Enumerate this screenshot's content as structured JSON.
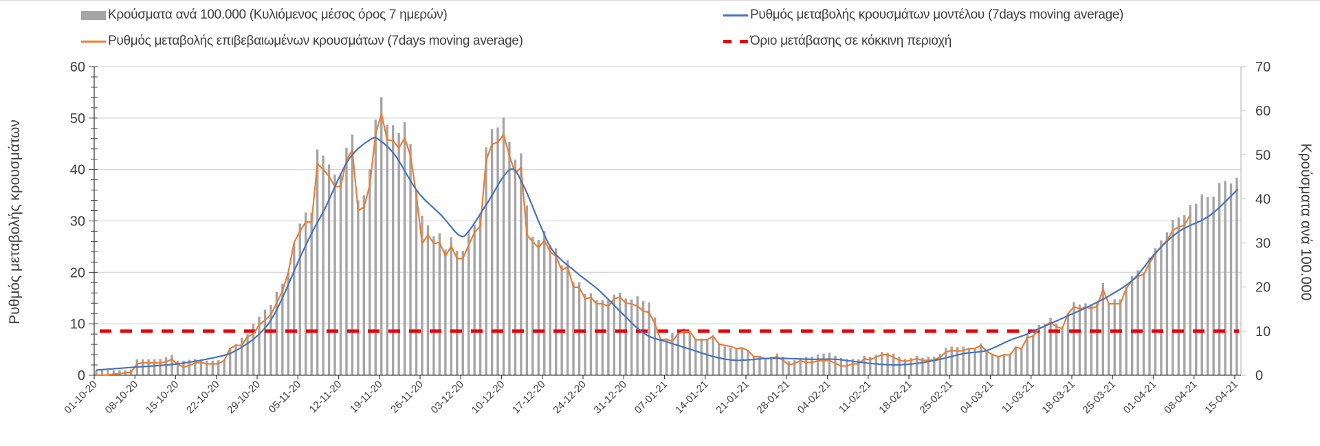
{
  "chart_data": {
    "type": "bar+line",
    "legend": {
      "bars": "Κρούσματα ανά 100.000 (Κυλιόμενος μέσος όρος 7 ημερών)",
      "confirmed_rate": "Ρυθμός μεταβολής επιβεβαιωμένων κρουσμάτων (7days moving average)",
      "model_rate": "Ρυθμός μεταβολής κρουσμάτων μοντέλου (7days moving average)",
      "threshold": "Όριο μετάβασης σε κόκκινη περιοχή"
    },
    "ylabel_left": "Ρυθμός μεταβολής κρουσμάτων",
    "ylabel_right": "Κρούσματα ανά 100.000",
    "ylim_left": [
      0,
      60
    ],
    "ylim_right": [
      0,
      70
    ],
    "yticks_left": [
      "0",
      "10",
      "20",
      "30",
      "40",
      "50",
      "60"
    ],
    "yticks_right": [
      "0",
      "10",
      "20",
      "30",
      "40",
      "50",
      "60",
      "70"
    ],
    "x_start": "01-10-20",
    "x_days": 197,
    "xtick_labels": [
      "01-10-20",
      "08-10-20",
      "15-10-20",
      "22-10-20",
      "29-10-20",
      "05-11-20",
      "12-11-20",
      "19-11-20",
      "26-11-20",
      "03-12-20",
      "10-12-20",
      "17-12-20",
      "24-12-20",
      "31-12-20",
      "07-01-21",
      "14-01-21",
      "21-01-21",
      "28-01-21",
      "04-02-21",
      "11-02-21",
      "18-02-21",
      "25-02-21",
      "04-03-21",
      "11-03-21",
      "18-03-21",
      "25-03-21",
      "01-04-21",
      "08-04-21",
      "15-04-21"
    ],
    "grid": "horizontal",
    "legend_placement": "top",
    "colors": {
      "bars": "#a5a5a5",
      "confirmed_rate": "#ed7d31",
      "model_rate": "#4472c4",
      "threshold": "#e8000b"
    },
    "threshold_right_axis": 10,
    "bars_right_axis": [
      1.1,
      1.1,
      1.1,
      1.1,
      1.1,
      1.1,
      1.3,
      3.6,
      3.6,
      3.6,
      3.6,
      3.7,
      4.1,
      4.6,
      3.3,
      3.3,
      3.5,
      3.7,
      3.4,
      3.3,
      3.3,
      3.4,
      3.5,
      6.2,
      7.1,
      8.5,
      9.3,
      11.7,
      13.3,
      14.9,
      15.9,
      18.9,
      20.8,
      23.3,
      30,
      34.4,
      36.9,
      36.9,
      51.2,
      49.8,
      47.8,
      45.5,
      45.5,
      51.6,
      54.6,
      39.7,
      40.8,
      46.7,
      58,
      63.1,
      56.8,
      56.7,
      55,
      57.4,
      52.4,
      41.5,
      36.2,
      34,
      31.5,
      32.2,
      28.5,
      31.3,
      28.2,
      28.2,
      32.7,
      34.1,
      36.2,
      51.7,
      55.8,
      56.2,
      58.5,
      52.9,
      48.9,
      50.3,
      38.5,
      31.4,
      30.7,
      32.7,
      29.5,
      28.8,
      24.9,
      26.1,
      21.1,
      21.1,
      18.4,
      18.6,
      17,
      17,
      17,
      18.3,
      18.7,
      17.4,
      17.2,
      17.9,
      16.8,
      16.5,
      13.1,
      8.3,
      8.3,
      9.6,
      9.8,
      10.6,
      9.8,
      8.3,
      8.3,
      8.3,
      9.1,
      7.2,
      6.5,
      6.2,
      6,
      6.2,
      5.5,
      4.2,
      4.4,
      3.9,
      4.2,
      4.9,
      4.2,
      3.2,
      3.4,
      3.6,
      4.2,
      4.2,
      4.7,
      4.9,
      5.1,
      4.4,
      3.9,
      3.7,
      3.7,
      3.6,
      4.4,
      4.2,
      4.6,
      5.3,
      5.1,
      4.9,
      4.2,
      3.7,
      3.9,
      4.4,
      3.9,
      4.2,
      4.2,
      4.8,
      6.2,
      6.5,
      6.4,
      6.5,
      6.2,
      6.2,
      7.2,
      5.5,
      4.9,
      4.4,
      4.7,
      4.7,
      6.5,
      6.2,
      9.1,
      9.1,
      11.4,
      11.7,
      13,
      11.7,
      10.6,
      14,
      16.6,
      16,
      16.3,
      16.1,
      16.6,
      20.9,
      16.3,
      17.2,
      17.2,
      20,
      22.5,
      23.8,
      23.3,
      26.7,
      28.8,
      30.6,
      32.4,
      35.2,
      35.8,
      36.3,
      38.6,
      38.9,
      41,
      40.4,
      40.5,
      43.6,
      44.1,
      43.5,
      44.8
    ],
    "confirmed_rate_left_axis": [
      0,
      0,
      0.1,
      0.2,
      0.3,
      0.5,
      0.6,
      2.2,
      2.4,
      2.4,
      2.4,
      2.4,
      2.6,
      3.1,
      2.1,
      1.6,
      1.9,
      2.4,
      2.5,
      2.2,
      2.2,
      2.2,
      2.9,
      5.2,
      5.8,
      5.8,
      7.5,
      8,
      9.8,
      10.7,
      11.8,
      14,
      16.4,
      20,
      25.8,
      28,
      29.8,
      29.8,
      41.1,
      40,
      38.7,
      36.7,
      36.7,
      41.8,
      43.8,
      32,
      32.7,
      36.9,
      46.9,
      50.8,
      45.8,
      45.6,
      44.2,
      46.1,
      42.7,
      35.1,
      25.6,
      27.3,
      25.6,
      25.8,
      23.2,
      25.1,
      22.7,
      22.7,
      25.3,
      27.8,
      28.9,
      41.8,
      44.9,
      45.3,
      46.8,
      42.7,
      39.3,
      40.4,
      27.3,
      26,
      24.8,
      26.2,
      24,
      23.1,
      20.4,
      21.1,
      17.1,
      17.1,
      14.9,
      15.1,
      13.9,
      13.9,
      13.4,
      14.9,
      15.2,
      14,
      13.9,
      13.4,
      12.5,
      12.2,
      10,
      6.9,
      7,
      6.6,
      8.1,
      8.5,
      8.5,
      6.9,
      6.9,
      6.9,
      7.6,
      6.1,
      5.8,
      5.6,
      5.2,
      5.3,
      4.8,
      3.6,
      3.6,
      3.2,
      3.3,
      3.6,
      2.9,
      2,
      2.3,
      2.8,
      2.5,
      2.5,
      2.8,
      2.8,
      2.9,
      2.3,
      1.8,
      1.8,
      2.2,
      2.2,
      3.2,
      3,
      3.5,
      4,
      4,
      3.5,
      2.9,
      2.7,
      2.9,
      3.2,
      2.9,
      2.9,
      3,
      3.5,
      4.5,
      4.8,
      4.7,
      4.8,
      5.2,
      5.2,
      5.8,
      4.7,
      4,
      3.6,
      4,
      3.9,
      5.4,
      5.2,
      7.3,
      7.6,
      9,
      9.6,
      10.3,
      9.4,
      9.1,
      12,
      13.3,
      12.9,
      13.2,
      13,
      13.4,
      16.7,
      13.9,
      13.9,
      13.9,
      16.9,
      18.4,
      19.2,
      19.6,
      21.8,
      23.6,
      25,
      26.2,
      28.2,
      28.8,
      29.2,
      31.2
    ],
    "model_rate_left_axis": [
      [
        0,
        1
      ],
      [
        7,
        1.6
      ],
      [
        14,
        2.2
      ],
      [
        21,
        3.6
      ],
      [
        24,
        4.8
      ],
      [
        28,
        8
      ],
      [
        31,
        12.7
      ],
      [
        35.3,
        23.6
      ],
      [
        37.6,
        28.9
      ],
      [
        39.3,
        32.4
      ],
      [
        43.3,
        41.8
      ],
      [
        47.2,
        45.9
      ],
      [
        48.8,
        45.6
      ],
      [
        51.4,
        42.7
      ],
      [
        55.3,
        35.6
      ],
      [
        59.3,
        31.1
      ],
      [
        62.4,
        27.2
      ],
      [
        64,
        28
      ],
      [
        67.1,
        33.3
      ],
      [
        71.1,
        40
      ],
      [
        73.4,
        36.9
      ],
      [
        76.4,
        28.9
      ],
      [
        78.6,
        24
      ],
      [
        82.5,
        20
      ],
      [
        86.5,
        16.4
      ],
      [
        90.4,
        12
      ],
      [
        94.3,
        8
      ],
      [
        98.3,
        6.4
      ],
      [
        102.2,
        5
      ],
      [
        106.2,
        3.6
      ],
      [
        110.1,
        2.9
      ],
      [
        116,
        3.3
      ],
      [
        123,
        3.1
      ],
      [
        127,
        3.1
      ],
      [
        133,
        2.3
      ],
      [
        137,
        2
      ],
      [
        141,
        2.3
      ],
      [
        145,
        3.1
      ],
      [
        149,
        4.2
      ],
      [
        153,
        4.8
      ],
      [
        157,
        6.8
      ],
      [
        160,
        8
      ],
      [
        162.5,
        9.3
      ],
      [
        166.5,
        11.3
      ],
      [
        170.4,
        13.3
      ],
      [
        174.3,
        15.6
      ],
      [
        178.3,
        18.7
      ],
      [
        182.2,
        24
      ],
      [
        186.1,
        28
      ],
      [
        190.1,
        30.2
      ],
      [
        192.4,
        32
      ],
      [
        196.2,
        36.2
      ]
    ]
  }
}
